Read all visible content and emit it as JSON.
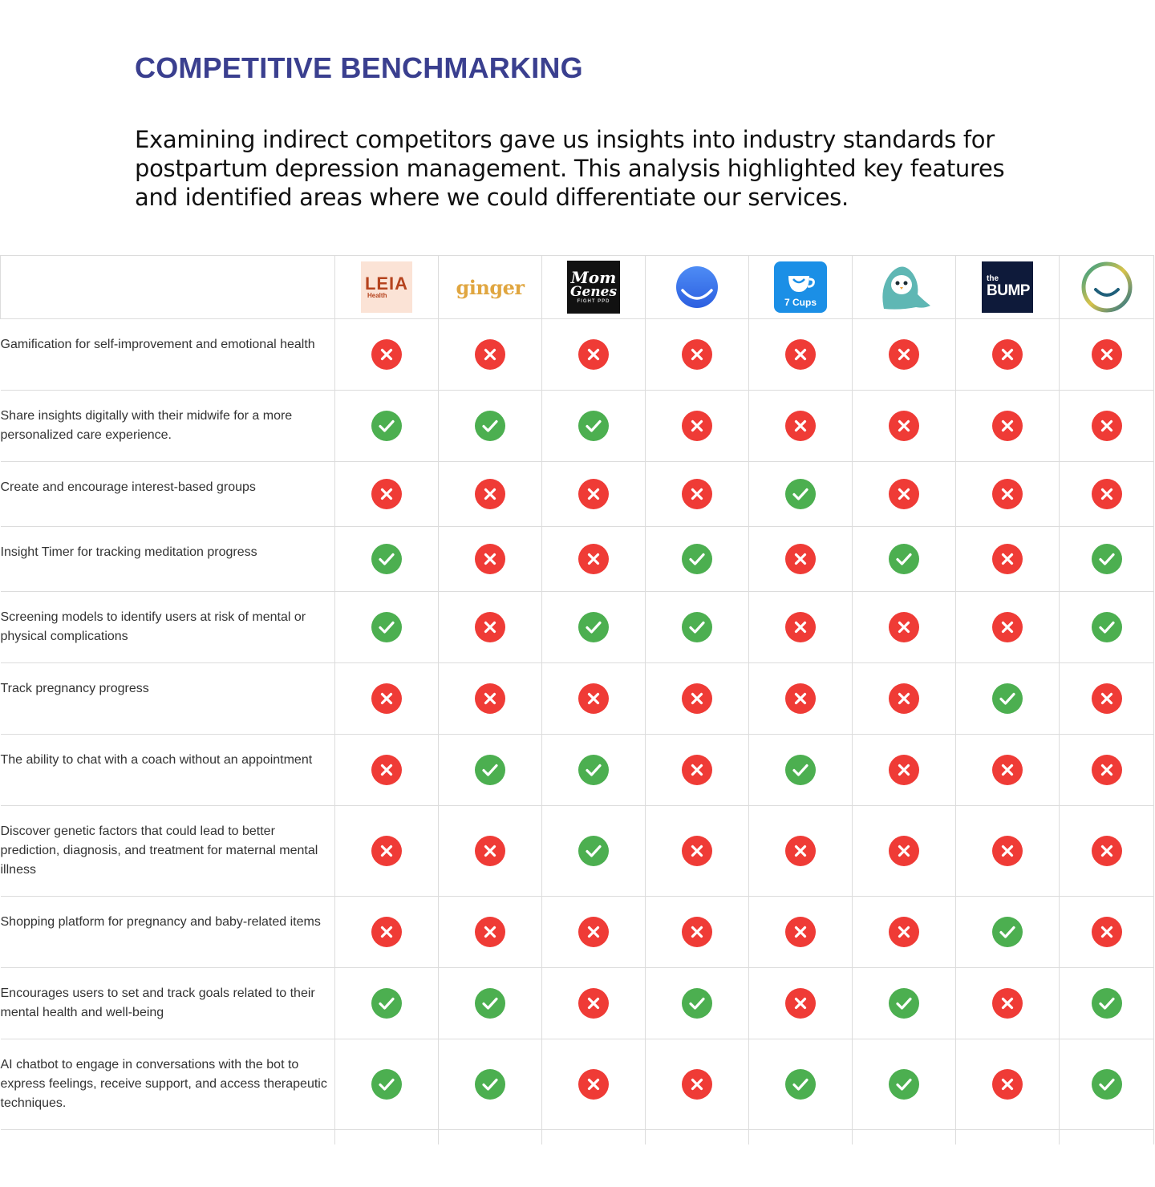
{
  "header": {
    "title": "COMPETITIVE BENCHMARKING",
    "intro": "Examining indirect competitors gave us insights into industry standards for postpartum depression management. This analysis highlighted key features and identified areas where we could differentiate our services."
  },
  "colors": {
    "title": "#3a3f8f",
    "yes": "#4caf50",
    "no": "#ef3b36",
    "grid": "#dcdcdc"
  },
  "competitors": [
    {
      "name": "LEIA Health",
      "logo_main": "LEIA",
      "logo_sub": "Health",
      "icon": "leia-health-logo"
    },
    {
      "name": "ginger",
      "logo_main": "ginger",
      "icon": "ginger-logo"
    },
    {
      "name": "Mom Genes",
      "logo_main": "Mom",
      "logo_main2": "Genes",
      "logo_sub": "FIGHT PPD",
      "icon": "mom-genes-logo"
    },
    {
      "name": "Smile app",
      "icon": "blue-smile-logo"
    },
    {
      "name": "7 Cups",
      "logo_main": "7 Cups",
      "icon": "seven-cups-logo"
    },
    {
      "name": "Penguin app",
      "icon": "penguin-logo"
    },
    {
      "name": "the Bump",
      "logo_sub": "the",
      "logo_main": "BUMP",
      "icon": "the-bump-logo"
    },
    {
      "name": "Gradient smile app",
      "icon": "gradient-smile-logo"
    }
  ],
  "features": [
    {
      "label": "Gamification for self-improvement and emotional health",
      "marks": [
        false,
        false,
        false,
        false,
        false,
        false,
        false,
        false
      ]
    },
    {
      "label": "Share insights digitally with their midwife for a more personalized care experience.",
      "marks": [
        true,
        true,
        true,
        false,
        false,
        false,
        false,
        false
      ]
    },
    {
      "label": "Create and encourage interest-based groups",
      "marks": [
        false,
        false,
        false,
        false,
        true,
        false,
        false,
        false
      ]
    },
    {
      "label": "Insight Timer for tracking meditation progress",
      "marks": [
        true,
        false,
        false,
        true,
        false,
        true,
        false,
        true
      ]
    },
    {
      "label": "Screening models to identify users at risk of mental or physical complications",
      "marks": [
        true,
        false,
        true,
        true,
        false,
        false,
        false,
        true
      ]
    },
    {
      "label": "Track pregnancy progress",
      "marks": [
        false,
        false,
        false,
        false,
        false,
        false,
        true,
        false
      ]
    },
    {
      "label": "The ability to chat with a coach without an appointment",
      "marks": [
        false,
        true,
        true,
        false,
        true,
        false,
        false,
        false
      ]
    },
    {
      "label": "Discover genetic factors that could lead to better prediction, diagnosis, and treatment for maternal mental illness",
      "marks": [
        false,
        false,
        true,
        false,
        false,
        false,
        false,
        false
      ]
    },
    {
      "label": "Shopping platform for pregnancy and baby-related items",
      "marks": [
        false,
        false,
        false,
        false,
        false,
        false,
        true,
        false
      ]
    },
    {
      "label": "Encourages users to set and track goals related to their mental health and well-being",
      "marks": [
        true,
        true,
        false,
        true,
        false,
        true,
        false,
        true
      ]
    },
    {
      "label": "AI chatbot to engage in conversations with the bot to express feelings, receive support, and access therapeutic techniques.",
      "marks": [
        true,
        true,
        false,
        false,
        true,
        true,
        false,
        true
      ]
    }
  ]
}
